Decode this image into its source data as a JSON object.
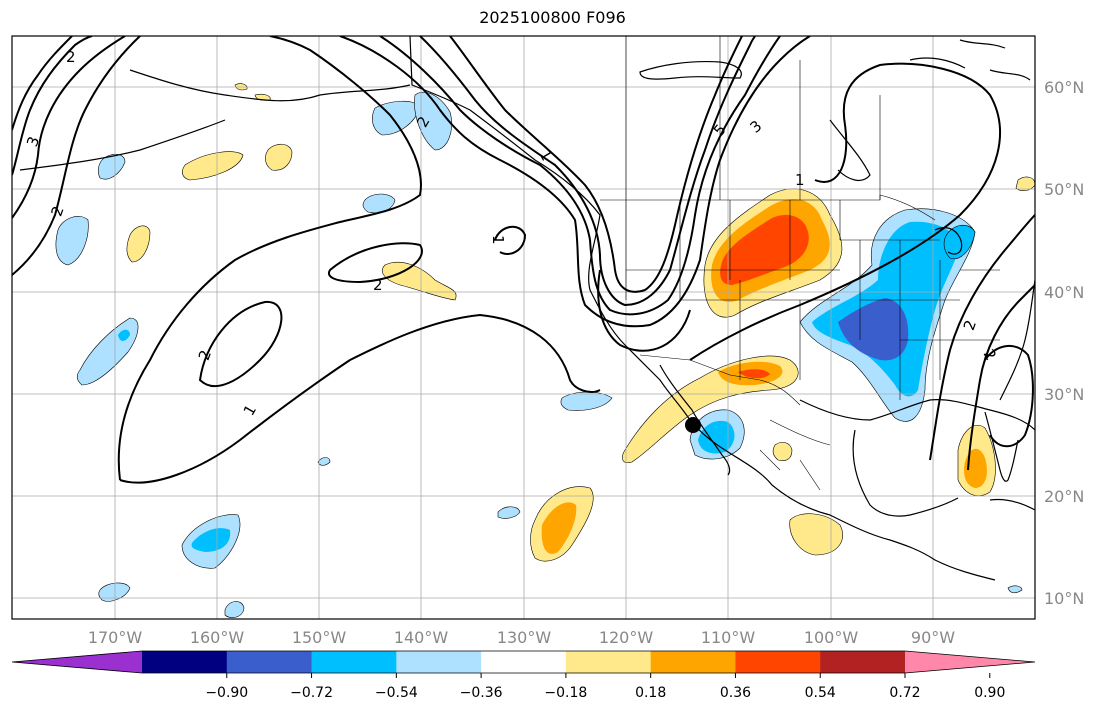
{
  "title": "2025100800 F096",
  "map": {
    "lon_range": [
      180,
      80
    ],
    "lat_range": [
      8,
      65
    ],
    "lat_labels": [
      "10°N",
      "20°N",
      "30°N",
      "40°N",
      "50°N",
      "60°N"
    ],
    "lon_labels": [
      "170°W",
      "160°W",
      "150°W",
      "140°W",
      "130°W",
      "120°W",
      "110°W",
      "100°W",
      "90°W"
    ],
    "contour_labels": [
      "2",
      "1",
      "2",
      "3",
      "2",
      "1",
      "2",
      "2",
      "1",
      "5",
      "3",
      "1",
      "2",
      "2"
    ],
    "marker": {
      "name": "black-dot",
      "lon": -113.3,
      "lat": 27.0
    }
  },
  "colorbar": {
    "tick_labels": [
      "−0.90",
      "−0.72",
      "−0.54",
      "−0.36",
      "−0.18",
      "0.18",
      "0.36",
      "0.54",
      "0.72",
      "0.90"
    ],
    "colors": [
      "#9b30d0",
      "#000080",
      "#3a5fcd",
      "#00bfff",
      "#aee0ff",
      "#ffffff",
      "#ffe98a",
      "#ffa500",
      "#ff4500",
      "#b22222",
      "#ff88aa"
    ]
  }
}
